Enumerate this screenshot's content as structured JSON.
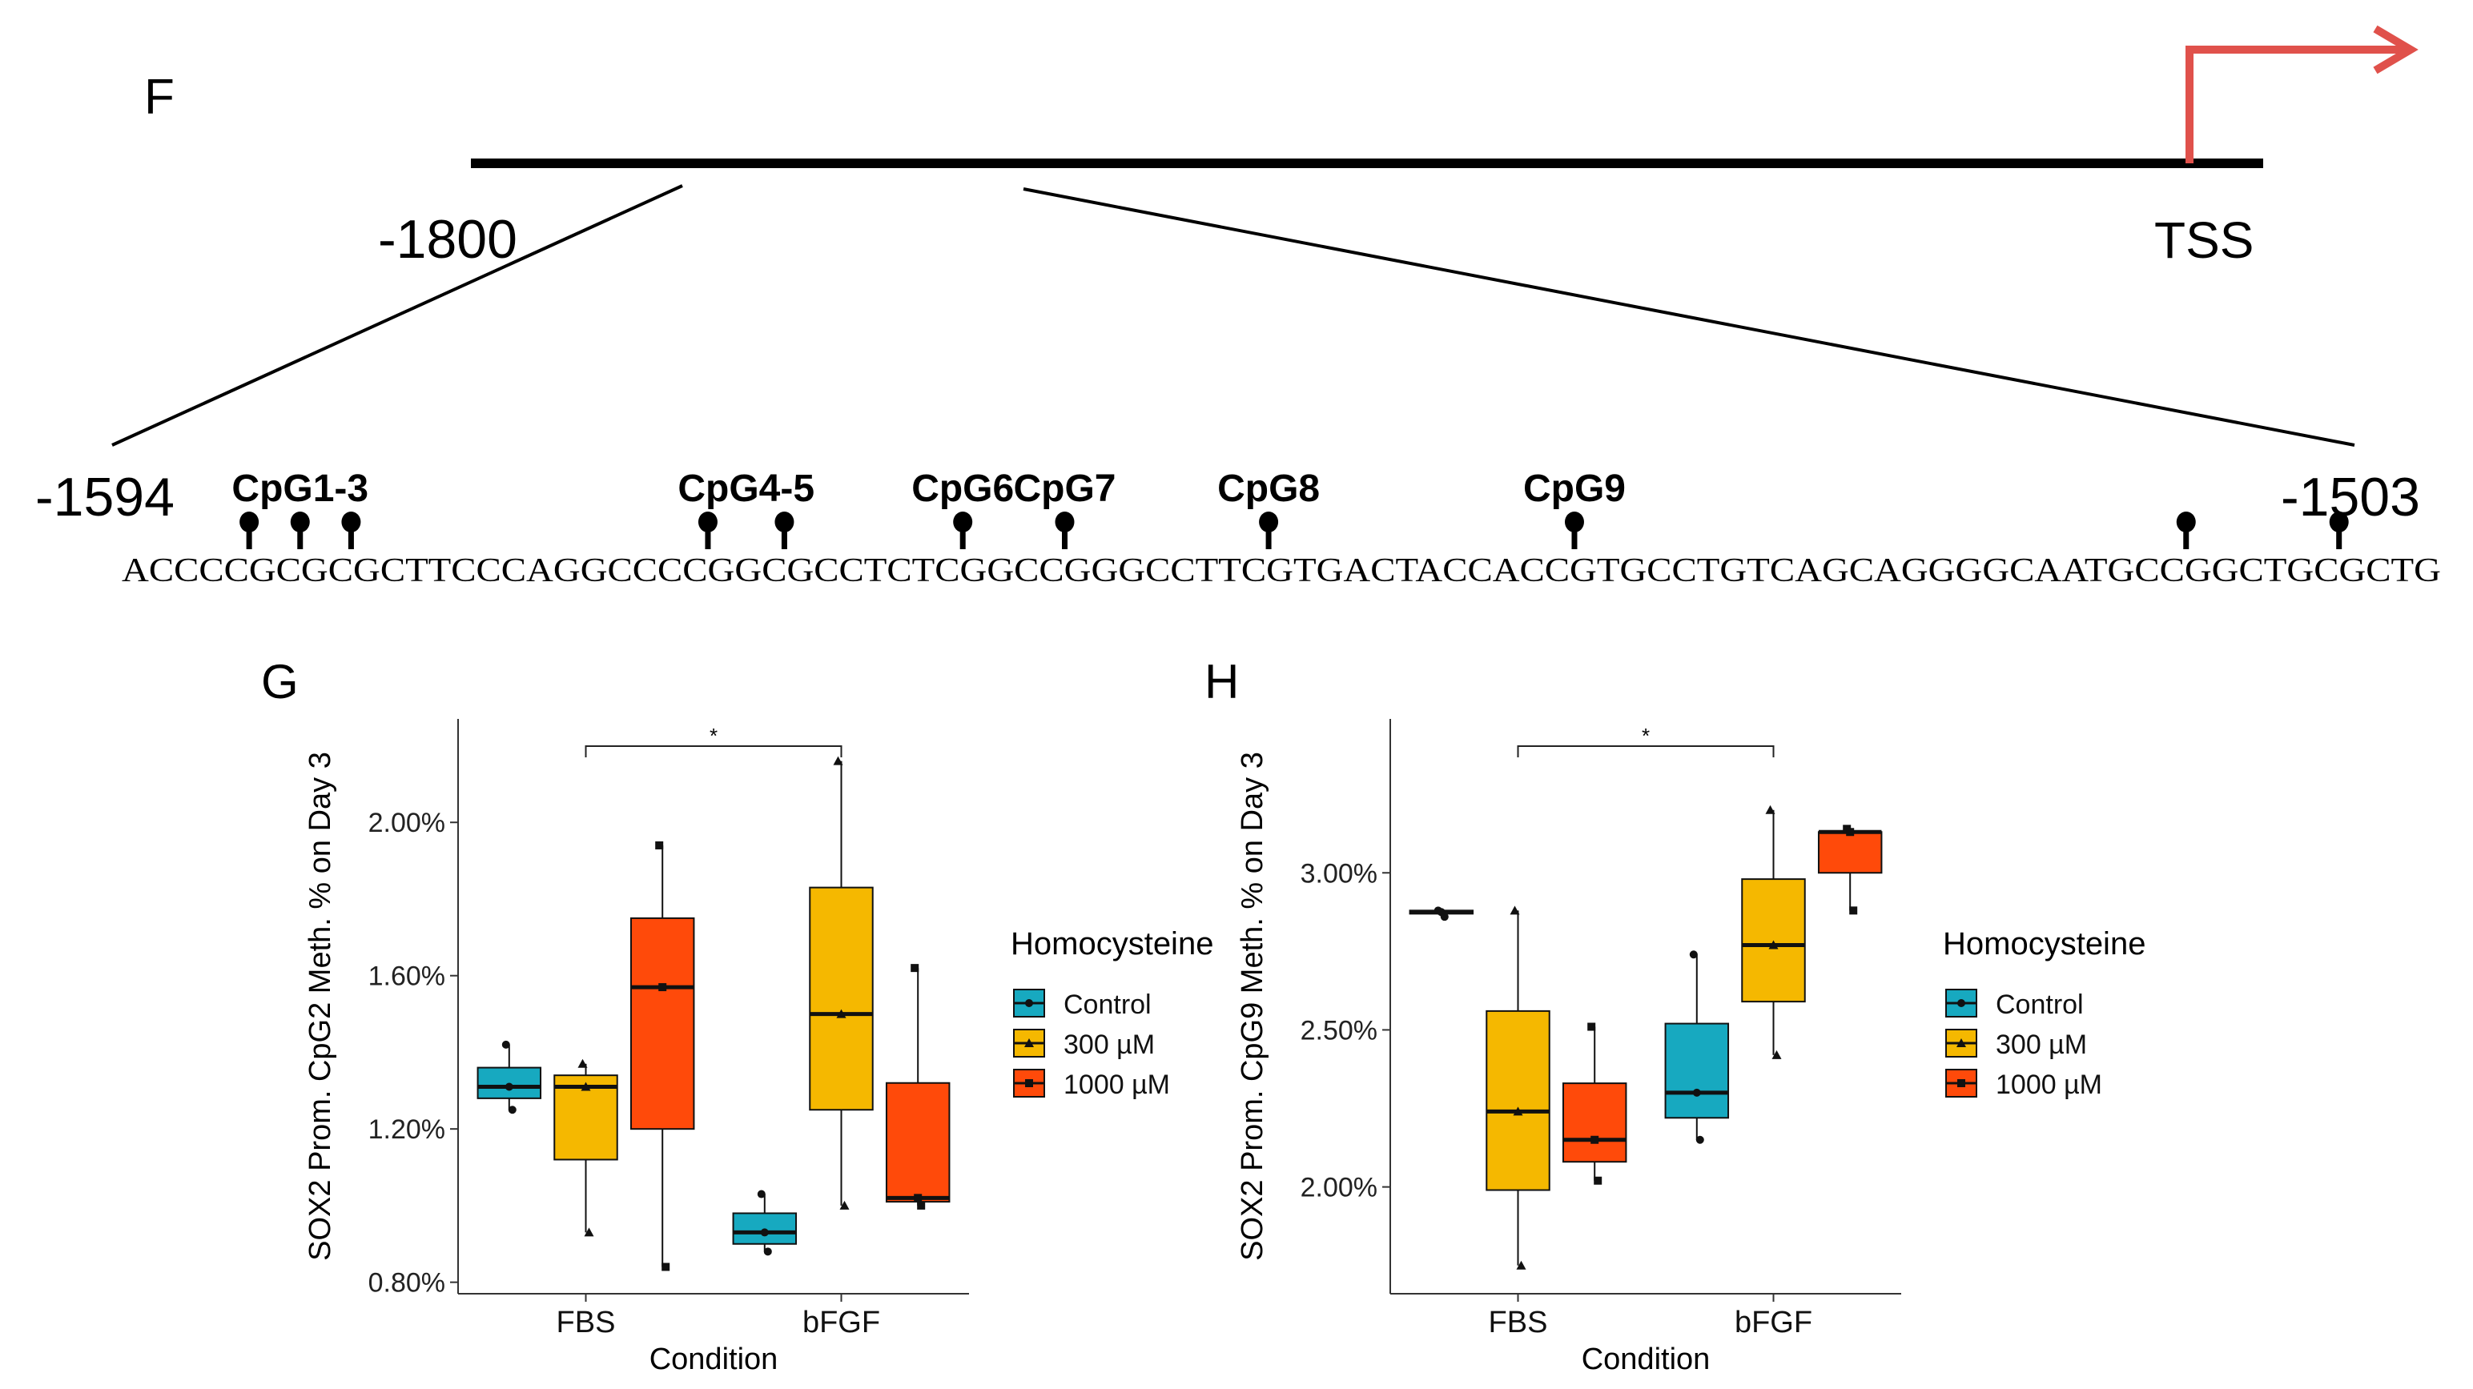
{
  "panel_f": {
    "panel_label": "F",
    "start_label": "-1800",
    "tss_label": "TSS",
    "region_start_label": "-1594",
    "region_end_label": "-1503",
    "sequence": "ACCCCGCGCGCTTCCCAGGCCCCGGCGCCTCTCGGCCGGGCCTTCGTGACTACCACCGTGCCTGTCAGCAGGGGCAATGCCGGCTGCGCTG",
    "cpg_sites": [
      {
        "label": "CpG1-3",
        "count": 3
      },
      {
        "label": "CpG4-5",
        "count": 2
      },
      {
        "label": "CpG6",
        "count": 1
      },
      {
        "label": "CpG7",
        "count": 1
      },
      {
        "label": "CpG8",
        "count": 1
      },
      {
        "label": "CpG9",
        "count": 1
      }
    ],
    "colors": {
      "line": "#000000",
      "tss_arrow": "#e0514b"
    }
  },
  "legend": {
    "title": "Homocysteine",
    "entries": [
      "Control",
      "300 µM",
      "1000 µM"
    ]
  },
  "colors": {
    "Control": "#17a9c0",
    "300 µM": "#f5b800",
    "1000 µM": "#ff4a0a"
  },
  "chart_data": [
    {
      "panel_label": "G",
      "type": "box",
      "title": "",
      "xlabel": "Condition",
      "ylabel": "SOX2 Prom. CpG2 Meth. % on Day 3",
      "categories": [
        "FBS",
        "bFGF"
      ],
      "ylim": [
        0.77,
        2.27
      ],
      "yticks": [
        "0.80%",
        "1.20%",
        "1.60%",
        "2.00%"
      ],
      "ytick_values": [
        0.8,
        1.2,
        1.6,
        2.0
      ],
      "significance": {
        "label": "*",
        "from": "FBS",
        "to": "bFGF"
      },
      "series": [
        {
          "name": "Control",
          "boxes": [
            {
              "min": 1.25,
              "q1": 1.28,
              "median": 1.31,
              "q3": 1.36,
              "max": 1.42,
              "points": [
                1.42,
                1.31,
                1.25
              ]
            },
            {
              "min": 0.88,
              "q1": 0.9,
              "median": 0.93,
              "q3": 0.98,
              "max": 1.03,
              "points": [
                1.03,
                0.93,
                0.88
              ]
            }
          ]
        },
        {
          "name": "300 µM",
          "boxes": [
            {
              "min": 0.93,
              "q1": 1.12,
              "median": 1.31,
              "q3": 1.34,
              "max": 1.37,
              "points": [
                1.37,
                1.31,
                0.93
              ]
            },
            {
              "min": 1.0,
              "q1": 1.25,
              "median": 1.5,
              "q3": 1.83,
              "max": 2.16,
              "points": [
                2.16,
                1.5,
                1.0
              ]
            }
          ]
        },
        {
          "name": "1000 µM",
          "boxes": [
            {
              "min": 0.84,
              "q1": 1.2,
              "median": 1.57,
              "q3": 1.75,
              "max": 1.94,
              "points": [
                1.94,
                1.57,
                0.84
              ]
            },
            {
              "min": 1.0,
              "q1": 1.01,
              "median": 1.02,
              "q3": 1.32,
              "max": 1.62,
              "points": [
                1.62,
                1.02,
                1.0
              ]
            }
          ]
        }
      ]
    },
    {
      "panel_label": "H",
      "type": "box",
      "title": "",
      "xlabel": "Condition",
      "ylabel": "SOX2 Prom. CpG9 Meth. % on Day 3",
      "categories": [
        "FBS",
        "bFGF"
      ],
      "ylim": [
        1.66,
        3.49
      ],
      "yticks": [
        "2.00%",
        "2.50%",
        "3.00%"
      ],
      "ytick_values": [
        2.0,
        2.5,
        3.0
      ],
      "significance": {
        "label": "*",
        "from": "FBS",
        "to": "bFGF"
      },
      "series": [
        {
          "name": "Control",
          "boxes": [
            {
              "min": 2.86,
              "q1": 2.87,
              "median": 2.875,
              "q3": 2.88,
              "max": 2.88,
              "points": [
                2.88,
                2.875,
                2.86
              ]
            },
            {
              "min": 2.15,
              "q1": 2.22,
              "median": 2.3,
              "q3": 2.52,
              "max": 2.74,
              "points": [
                2.74,
                2.3,
                2.15
              ]
            }
          ]
        },
        {
          "name": "300 µM",
          "boxes": [
            {
              "min": 1.75,
              "q1": 1.99,
              "median": 2.24,
              "q3": 2.56,
              "max": 2.88,
              "points": [
                2.88,
                2.24,
                1.75
              ]
            },
            {
              "min": 2.42,
              "q1": 2.59,
              "median": 2.77,
              "q3": 2.98,
              "max": 3.2,
              "points": [
                3.2,
                2.77,
                2.42
              ]
            }
          ]
        },
        {
          "name": "1000 µM",
          "boxes": [
            {
              "min": 2.02,
              "q1": 2.08,
              "median": 2.15,
              "q3": 2.33,
              "max": 2.51,
              "points": [
                2.51,
                2.15,
                2.02
              ]
            },
            {
              "min": 2.88,
              "q1": 3.0,
              "median": 3.13,
              "q3": 3.13,
              "max": 3.14,
              "points": [
                3.14,
                3.13,
                2.88
              ]
            }
          ]
        }
      ]
    }
  ]
}
